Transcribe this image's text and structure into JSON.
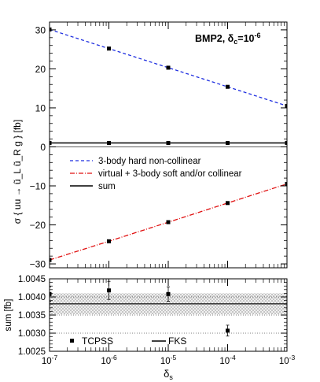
{
  "chart_data": [
    {
      "type": "line",
      "annotation": {
        "main": "BMP2, δ",
        "sub": "c",
        "eq": "=10",
        "sup": "-6"
      },
      "ylabel": "σ { uu → ũ_L ũ_R g } [fb]",
      "xscale": "log",
      "xlim": [
        1e-07,
        0.001
      ],
      "ylim": [
        -31,
        32
      ],
      "yticks": [
        -30,
        -20,
        -10,
        0,
        10,
        20,
        30
      ],
      "x": [
        1e-07,
        1e-06,
        1e-05,
        0.0001,
        0.001
      ],
      "legend_position": "center",
      "series": [
        {
          "name": "3-body hard non-collinear",
          "color": "#1f2fe0",
          "style": "dashed",
          "values": [
            30.1,
            25.2,
            20.3,
            15.4,
            10.5
          ]
        },
        {
          "name": "virtual + 3-body soft and/or collinear",
          "color": "#e01010",
          "style": "dashdot",
          "values": [
            -29.0,
            -24.2,
            -19.3,
            -14.4,
            -9.5
          ]
        },
        {
          "name": "sum",
          "color": "#000000",
          "style": "solid",
          "values": [
            1.004,
            1.004,
            1.004,
            1.003,
            1.004
          ]
        }
      ]
    },
    {
      "type": "scatter",
      "xlabel": "δs",
      "xlabel_main": "δ",
      "xlabel_sub": "s",
      "ylabel": "sum [fb]",
      "xscale": "log",
      "xlim": [
        1e-07,
        0.001
      ],
      "ylim": [
        1.0025,
        1.0045
      ],
      "yticks": [
        1.0025,
        1.003,
        1.0035,
        1.004,
        1.0045
      ],
      "ytick_labels": [
        "1.0025",
        "1.0030",
        "1.0035",
        "1.0040",
        "1.0045"
      ],
      "xtick_labels": [
        {
          "base": "10",
          "exp": "-7"
        },
        {
          "base": "10",
          "exp": "-6"
        },
        {
          "base": "10",
          "exp": "-5"
        },
        {
          "base": "10",
          "exp": "-4"
        },
        {
          "base": "10",
          "exp": "-3"
        }
      ],
      "tcpss": {
        "name": "TCPSS",
        "x": [
          1e-07,
          1e-06,
          1e-05,
          0.0001
        ],
        "values": [
          1.00408,
          1.00418,
          1.00408,
          1.00307
        ],
        "errors": [
          0.0002,
          0.00025,
          0.0002,
          0.00015
        ]
      },
      "fks": {
        "name": "FKS",
        "value": 1.00381,
        "band": [
          1.00352,
          1.0041
        ]
      },
      "reference_lines": [
        1.003,
        1.0035,
        1.004
      ]
    }
  ]
}
